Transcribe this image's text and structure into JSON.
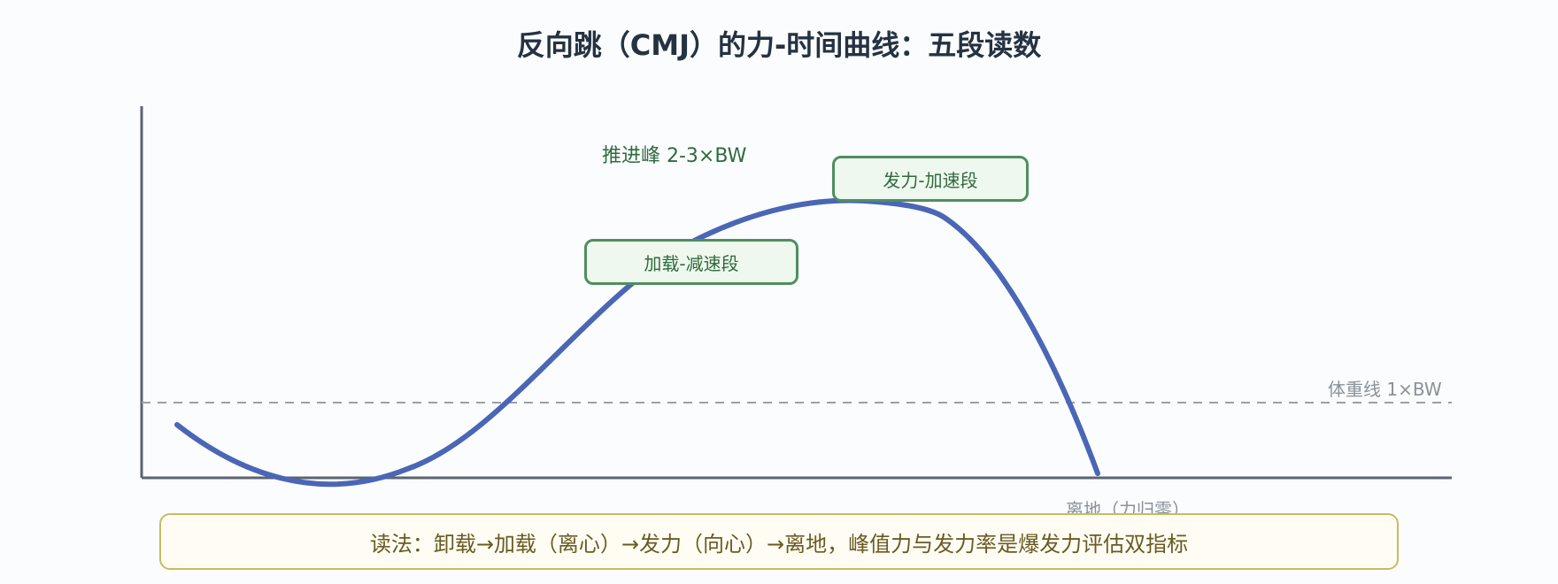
{
  "title": "反向跳（CMJ）的力-时间曲线：五段读数",
  "labels": {
    "peak": "推进峰 2-3×BW",
    "bodyweight": "体重线 1×BW",
    "takeoff": "离地（力归零）"
  },
  "phases": [
    {
      "id": "loading",
      "label": "加载-减速段"
    },
    {
      "id": "propulsion",
      "label": "发力-加速段"
    }
  ],
  "note": "读法：卸载→加载（离心）→发力（向心）→离地，峰值力与发力率是爆发力评估双指标",
  "colors": {
    "curve": "#4a66b5",
    "axis": "#5d6470",
    "bodyweight_line": "#9aa0a8",
    "phase_border": "#4e8f5f",
    "phase_fill": "#eef8ee",
    "note_border": "#c8bb62",
    "note_fill": "#fffdf3"
  }
}
